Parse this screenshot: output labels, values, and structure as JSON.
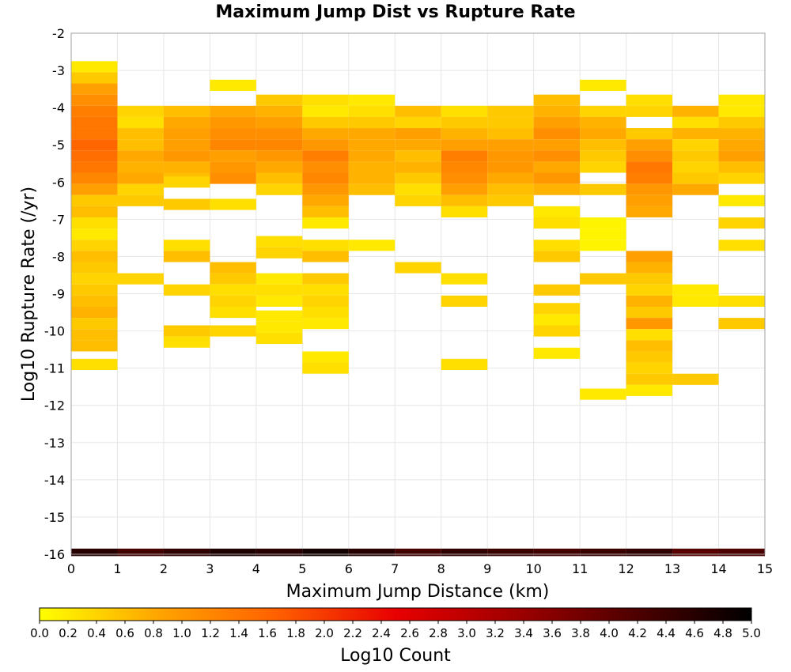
{
  "chart_data": {
    "type": "heatmap",
    "title": "Maximum Jump Dist vs Rupture Rate",
    "xlabel": "Maximum Jump Distance (km)",
    "ylabel": "Log10 Rupture Rate (/yr)",
    "xlim": [
      0,
      15
    ],
    "ylim": [
      -16,
      -2
    ],
    "x_ticks": [
      0,
      1,
      2,
      3,
      4,
      5,
      6,
      7,
      8,
      9,
      10,
      11,
      12,
      13,
      14,
      15
    ],
    "y_ticks": [
      -16,
      -15,
      -14,
      -13,
      -12,
      -11,
      -10,
      -9,
      -8,
      -7,
      -6,
      -5,
      -4,
      -3,
      -2
    ],
    "grid": true,
    "bin_width_x": 1,
    "bin_height_y": 0.3,
    "colorbar": {
      "label": "Log10 Count",
      "min": 0.0,
      "max": 5.0,
      "ticks": [
        "0.0",
        "0.2",
        "0.4",
        "0.6",
        "0.8",
        "1.0",
        "1.2",
        "1.4",
        "1.6",
        "1.8",
        "2.0",
        "2.2",
        "2.4",
        "2.6",
        "2.8",
        "3.0",
        "3.2",
        "3.4",
        "3.6",
        "3.8",
        "4.0",
        "4.2",
        "4.4",
        "4.6",
        "4.8",
        "5.0"
      ],
      "colors": [
        "#ffff00",
        "#ffa500",
        "#ff6000",
        "#e80000",
        "#a00000",
        "#500000",
        "#000000"
      ]
    },
    "columns": [
      {
        "x0": 0,
        "cells": [
          [
            -2.9,
            0.2
          ],
          [
            -3.2,
            0.5
          ],
          [
            -3.5,
            0.9
          ],
          [
            -3.8,
            1.1
          ],
          [
            -4.1,
            1.3
          ],
          [
            -4.4,
            1.4
          ],
          [
            -4.7,
            1.4
          ],
          [
            -5.0,
            1.6
          ],
          [
            -5.3,
            1.5
          ],
          [
            -5.6,
            1.4
          ],
          [
            -5.9,
            1.2
          ],
          [
            -6.2,
            0.9
          ],
          [
            -6.5,
            0.5
          ],
          [
            -6.8,
            0.6
          ],
          [
            -7.1,
            0.3
          ],
          [
            -7.4,
            0.2
          ],
          [
            -7.7,
            0.4
          ],
          [
            -8.0,
            0.6
          ],
          [
            -8.3,
            0.5
          ],
          [
            -8.6,
            0.4
          ],
          [
            -8.9,
            0.5
          ],
          [
            -9.2,
            0.6
          ],
          [
            -9.5,
            0.7
          ],
          [
            -9.8,
            0.5
          ],
          [
            -10.1,
            0.6
          ],
          [
            -10.4,
            0.6
          ],
          [
            -10.9,
            0.3
          ]
        ]
      },
      {
        "x0": 1,
        "cells": [
          [
            -4.1,
            0.4
          ],
          [
            -4.4,
            0.3
          ],
          [
            -4.7,
            0.6
          ],
          [
            -5.0,
            0.6
          ],
          [
            -5.3,
            0.8
          ],
          [
            -5.6,
            0.7
          ],
          [
            -5.9,
            0.8
          ],
          [
            -6.2,
            0.4
          ],
          [
            -6.5,
            0.5
          ],
          [
            -8.6,
            0.4
          ]
        ]
      },
      {
        "x0": 2,
        "cells": [
          [
            -4.1,
            0.6
          ],
          [
            -4.4,
            0.8
          ],
          [
            -4.7,
            0.9
          ],
          [
            -5.0,
            0.9
          ],
          [
            -5.3,
            1.0
          ],
          [
            -5.6,
            0.7
          ],
          [
            -5.9,
            0.6
          ],
          [
            -6.0,
            0.4
          ],
          [
            -6.6,
            0.5
          ],
          [
            -7.7,
            0.3
          ],
          [
            -8.0,
            0.6
          ],
          [
            -8.9,
            0.4
          ],
          [
            -10.0,
            0.5
          ],
          [
            -10.3,
            0.3
          ]
        ]
      },
      {
        "x0": 3,
        "cells": [
          [
            -3.4,
            0.2
          ],
          [
            -4.1,
            0.8
          ],
          [
            -4.4,
            1.0
          ],
          [
            -4.7,
            1.1
          ],
          [
            -5.0,
            1.2
          ],
          [
            -5.3,
            0.9
          ],
          [
            -5.6,
            1.0
          ],
          [
            -5.9,
            1.1
          ],
          [
            -6.6,
            0.3
          ],
          [
            -8.3,
            0.6
          ],
          [
            -8.6,
            0.5
          ],
          [
            -8.9,
            0.3
          ],
          [
            -9.2,
            0.4
          ],
          [
            -9.5,
            0.3
          ],
          [
            -10.0,
            0.4
          ]
        ]
      },
      {
        "x0": 4,
        "cells": [
          [
            -3.8,
            0.5
          ],
          [
            -4.1,
            0.7
          ],
          [
            -4.4,
            0.9
          ],
          [
            -4.7,
            1.1
          ],
          [
            -5.0,
            1.2
          ],
          [
            -5.3,
            1.0
          ],
          [
            -5.6,
            0.8
          ],
          [
            -5.9,
            0.6
          ],
          [
            -6.2,
            0.4
          ],
          [
            -7.6,
            0.3
          ],
          [
            -7.9,
            0.4
          ],
          [
            -8.6,
            0.2
          ],
          [
            -8.9,
            0.3
          ],
          [
            -9.2,
            0.2
          ],
          [
            -9.6,
            0.2
          ],
          [
            -9.9,
            0.2
          ],
          [
            -10.2,
            0.3
          ]
        ]
      },
      {
        "x0": 5,
        "cells": [
          [
            -3.8,
            0.3
          ],
          [
            -4.1,
            0.2
          ],
          [
            -4.4,
            0.5
          ],
          [
            -4.7,
            0.8
          ],
          [
            -5.0,
            1.0
          ],
          [
            -5.3,
            1.3
          ],
          [
            -5.6,
            1.1
          ],
          [
            -5.9,
            1.2
          ],
          [
            -6.2,
            1.0
          ],
          [
            -6.5,
            0.8
          ],
          [
            -6.8,
            0.6
          ],
          [
            -7.1,
            0.2
          ],
          [
            -7.7,
            0.3
          ],
          [
            -8.0,
            0.6
          ],
          [
            -8.6,
            0.5
          ],
          [
            -8.9,
            0.3
          ],
          [
            -9.2,
            0.4
          ],
          [
            -9.5,
            0.3
          ],
          [
            -9.8,
            0.2
          ],
          [
            -10.7,
            0.2
          ],
          [
            -11.0,
            0.3
          ]
        ]
      },
      {
        "x0": 6,
        "cells": [
          [
            -3.8,
            0.2
          ],
          [
            -4.1,
            0.3
          ],
          [
            -4.4,
            0.5
          ],
          [
            -4.7,
            0.8
          ],
          [
            -5.0,
            0.8
          ],
          [
            -5.3,
            0.8
          ],
          [
            -5.6,
            0.7
          ],
          [
            -5.9,
            0.7
          ],
          [
            -6.2,
            0.6
          ],
          [
            -7.7,
            0.2
          ]
        ]
      },
      {
        "x0": 7,
        "cells": [
          [
            -4.1,
            0.6
          ],
          [
            -4.4,
            0.4
          ],
          [
            -4.7,
            0.9
          ],
          [
            -5.0,
            0.8
          ],
          [
            -5.3,
            0.6
          ],
          [
            -5.6,
            0.7
          ],
          [
            -5.9,
            0.5
          ],
          [
            -6.2,
            0.3
          ],
          [
            -6.5,
            0.4
          ],
          [
            -8.3,
            0.4
          ]
        ]
      },
      {
        "x0": 8,
        "cells": [
          [
            -4.1,
            0.3
          ],
          [
            -4.4,
            0.5
          ],
          [
            -4.7,
            0.7
          ],
          [
            -5.0,
            0.9
          ],
          [
            -5.3,
            1.3
          ],
          [
            -5.6,
            1.2
          ],
          [
            -5.9,
            1.1
          ],
          [
            -6.2,
            0.9
          ],
          [
            -6.5,
            0.6
          ],
          [
            -6.8,
            0.3
          ],
          [
            -8.6,
            0.3
          ],
          [
            -9.2,
            0.4
          ],
          [
            -10.9,
            0.3
          ]
        ]
      },
      {
        "x0": 9,
        "cells": [
          [
            -4.1,
            0.5
          ],
          [
            -4.4,
            0.5
          ],
          [
            -4.7,
            0.6
          ],
          [
            -5.0,
            0.9
          ],
          [
            -5.3,
            1.0
          ],
          [
            -5.6,
            1.0
          ],
          [
            -5.9,
            0.8
          ],
          [
            -6.2,
            0.6
          ],
          [
            -6.5,
            0.5
          ]
        ]
      },
      {
        "x0": 10,
        "cells": [
          [
            -3.8,
            0.6
          ],
          [
            -4.1,
            0.7
          ],
          [
            -4.4,
            0.9
          ],
          [
            -4.7,
            1.1
          ],
          [
            -5.0,
            0.9
          ],
          [
            -5.3,
            1.1
          ],
          [
            -5.6,
            0.8
          ],
          [
            -5.9,
            1.0
          ],
          [
            -6.2,
            0.7
          ],
          [
            -6.8,
            0.2
          ],
          [
            -7.1,
            0.3
          ],
          [
            -7.7,
            0.3
          ],
          [
            -8.0,
            0.5
          ],
          [
            -8.9,
            0.5
          ],
          [
            -9.4,
            0.4
          ],
          [
            -9.7,
            0.2
          ],
          [
            -10.0,
            0.4
          ],
          [
            -10.6,
            0.2
          ]
        ]
      },
      {
        "x0": 11,
        "cells": [
          [
            -3.4,
            0.2
          ],
          [
            -4.1,
            0.4
          ],
          [
            -4.4,
            0.7
          ],
          [
            -4.7,
            0.8
          ],
          [
            -5.0,
            0.6
          ],
          [
            -5.3,
            0.5
          ],
          [
            -5.6,
            0.4
          ],
          [
            -6.2,
            0.5
          ],
          [
            -7.1,
            0.1
          ],
          [
            -7.4,
            0.1
          ],
          [
            -7.7,
            0.1
          ],
          [
            -8.6,
            0.5
          ],
          [
            -11.7,
            0.2
          ]
        ]
      },
      {
        "x0": 12,
        "cells": [
          [
            -3.8,
            0.3
          ],
          [
            -4.1,
            0.4
          ],
          [
            -4.7,
            0.5
          ],
          [
            -5.0,
            0.9
          ],
          [
            -5.3,
            1.1
          ],
          [
            -5.6,
            1.4
          ],
          [
            -5.9,
            1.3
          ],
          [
            -6.2,
            1.0
          ],
          [
            -6.5,
            0.9
          ],
          [
            -6.8,
            0.8
          ],
          [
            -8.0,
            0.9
          ],
          [
            -8.3,
            0.7
          ],
          [
            -8.6,
            0.5
          ],
          [
            -8.9,
            0.4
          ],
          [
            -9.2,
            0.7
          ],
          [
            -9.5,
            0.5
          ],
          [
            -9.8,
            1.0
          ],
          [
            -10.1,
            0.3
          ],
          [
            -10.4,
            0.6
          ],
          [
            -10.7,
            0.5
          ],
          [
            -11.0,
            0.4
          ],
          [
            -11.3,
            0.5
          ],
          [
            -11.6,
            0.2
          ]
        ]
      },
      {
        "x0": 13,
        "cells": [
          [
            -4.1,
            0.7
          ],
          [
            -4.4,
            0.3
          ],
          [
            -4.7,
            0.7
          ],
          [
            -5.0,
            0.4
          ],
          [
            -5.3,
            0.5
          ],
          [
            -5.6,
            0.4
          ],
          [
            -5.9,
            0.5
          ],
          [
            -6.2,
            0.8
          ],
          [
            -8.9,
            0.2
          ],
          [
            -9.2,
            0.2
          ],
          [
            -11.3,
            0.5
          ]
        ]
      },
      {
        "x0": 14,
        "cells": [
          [
            -3.8,
            0.2
          ],
          [
            -4.1,
            0.2
          ],
          [
            -4.4,
            0.5
          ],
          [
            -4.7,
            0.7
          ],
          [
            -5.0,
            0.8
          ],
          [
            -5.3,
            0.9
          ],
          [
            -5.6,
            0.6
          ],
          [
            -5.9,
            0.4
          ],
          [
            -6.5,
            0.2
          ],
          [
            -7.1,
            0.4
          ],
          [
            -7.7,
            0.3
          ],
          [
            -9.2,
            0.3
          ],
          [
            -9.8,
            0.5
          ]
        ]
      }
    ],
    "bottom_row": {
      "y": -15.95,
      "values": [
        4.6,
        4.3,
        4.5,
        4.7,
        4.6,
        4.8,
        4.6,
        4.3,
        4.5,
        4.4,
        4.3,
        4.4,
        4.5,
        4.1,
        4.2
      ]
    }
  }
}
